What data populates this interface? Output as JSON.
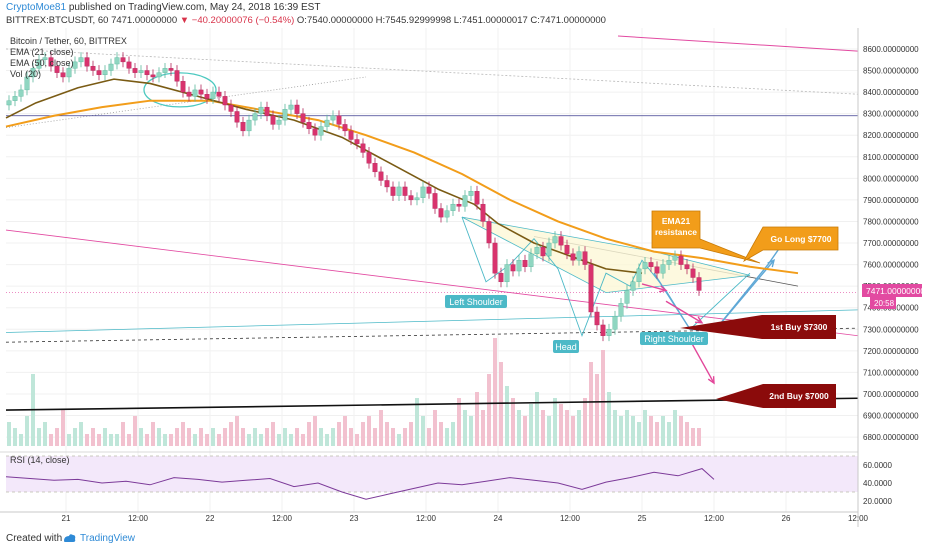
{
  "header": {
    "username": "CryptoMoe81",
    "published_text": "published on TradingView.com, May 24, 2018 16:39 EST",
    "symbol": "BITTREX:BTCUSDT, 60",
    "last_price": "7471.00000000",
    "change": "−40.20000076 (−0.54%)",
    "ohlc": "O:7540.00000000 H:7545.92999998 L:7451.00000017 C:7471.00000000"
  },
  "legend": {
    "title": "Bitcoin / Tether, 60, BITTREX",
    "ema21": "EMA (21, close)",
    "ema50": "EMA (50, close)",
    "vol": "Vol (20)"
  },
  "rsi": {
    "label": "RSI (14, close)",
    "ticks": [
      "60.0000",
      "40.0000",
      "20.0000"
    ]
  },
  "price_tag": {
    "value": "7471.00000000",
    "time": "20:58"
  },
  "footer": {
    "created": "Created with",
    "brand": "TradingView"
  },
  "colors": {
    "up": "#8fd6c1",
    "down": "#d8336d",
    "ema21": "#7a5b14",
    "ema50": "#f29d1a",
    "pink": "#e24aa1",
    "teal": "#4cb9c7",
    "navy": "#3b3b8e",
    "darkred": "#8b0b0b",
    "annot_orange": "#f29d1a",
    "arrow_blue": "#5fa8d6",
    "arrow_pink": "#e2479a"
  },
  "chart_data": {
    "type": "candlestick",
    "y_axis": {
      "min": 6740,
      "max": 8660,
      "ticks": [
        "8600.00000000",
        "8500.00000000",
        "8400.00000000",
        "8300.00000000",
        "8200.00000000",
        "8100.00000000",
        "8000.00000000",
        "7900.00000000",
        "7800.00000000",
        "7700.00000000",
        "7600.00000000",
        "7500.00000000",
        "7400.00000000",
        "7300.00000000",
        "7200.00000000",
        "7100.00000000",
        "7000.00000000",
        "6900.00000000",
        "6800.00000000"
      ]
    },
    "x_axis": {
      "min": 0,
      "max": 142,
      "ticks": [
        {
          "label": "21",
          "x": 10
        },
        {
          "label": "12:00",
          "x": 22
        },
        {
          "label": "22",
          "x": 34
        },
        {
          "label": "12:00",
          "x": 46
        },
        {
          "label": "23",
          "x": 58
        },
        {
          "label": "12:00",
          "x": 70
        },
        {
          "label": "24",
          "x": 82
        },
        {
          "label": "12:00",
          "x": 94
        },
        {
          "label": "25",
          "x": 106
        },
        {
          "label": "12:00",
          "x": 118
        },
        {
          "label": "26",
          "x": 130
        },
        {
          "label": "12:00",
          "x": 142
        }
      ]
    },
    "closes": [
      8360,
      8380,
      8410,
      8470,
      8510,
      8550,
      8560,
      8520,
      8490,
      8470,
      8510,
      8540,
      8560,
      8520,
      8500,
      8480,
      8500,
      8530,
      8560,
      8540,
      8510,
      8490,
      8500,
      8480,
      8470,
      8490,
      8510,
      8500,
      8450,
      8400,
      8380,
      8410,
      8390,
      8370,
      8400,
      8380,
      8340,
      8310,
      8260,
      8220,
      8270,
      8300,
      8330,
      8290,
      8250,
      8270,
      8320,
      8340,
      8300,
      8260,
      8230,
      8200,
      8240,
      8270,
      8290,
      8250,
      8220,
      8180,
      8160,
      8120,
      8070,
      8030,
      7990,
      7960,
      7920,
      7960,
      7920,
      7900,
      7910,
      7960,
      7930,
      7860,
      7820,
      7850,
      7880,
      7870,
      7920,
      7940,
      7880,
      7800,
      7700,
      7560,
      7520,
      7600,
      7570,
      7620,
      7590,
      7650,
      7680,
      7640,
      7700,
      7730,
      7690,
      7650,
      7620,
      7660,
      7600,
      7380,
      7320,
      7270,
      7300,
      7360,
      7420,
      7480,
      7520,
      7580,
      7610,
      7590,
      7560,
      7600,
      7620,
      7640,
      7600,
      7580,
      7540,
      7480
    ],
    "ema21_points": [
      [
        0,
        8280
      ],
      [
        5,
        8350
      ],
      [
        12,
        8420
      ],
      [
        18,
        8460
      ],
      [
        24,
        8440
      ],
      [
        32,
        8380
      ],
      [
        40,
        8320
      ],
      [
        48,
        8270
      ],
      [
        56,
        8190
      ],
      [
        64,
        8070
      ],
      [
        72,
        7950
      ],
      [
        78,
        7880
      ],
      [
        82,
        7790
      ],
      [
        88,
        7700
      ],
      [
        94,
        7640
      ],
      [
        100,
        7580
      ],
      [
        106,
        7560
      ]
    ],
    "ema50_points": [
      [
        0,
        8240
      ],
      [
        8,
        8290
      ],
      [
        16,
        8330
      ],
      [
        24,
        8360
      ],
      [
        34,
        8360
      ],
      [
        42,
        8320
      ],
      [
        52,
        8270
      ],
      [
        60,
        8200
      ],
      [
        68,
        8120
      ],
      [
        76,
        8020
      ],
      [
        84,
        7900
      ],
      [
        92,
        7800
      ],
      [
        100,
        7720
      ],
      [
        108,
        7660
      ],
      [
        116,
        7630
      ],
      [
        124,
        7590
      ],
      [
        132,
        7560
      ]
    ],
    "rsi_points": [
      [
        0,
        47
      ],
      [
        4,
        45
      ],
      [
        8,
        43
      ],
      [
        12,
        44
      ],
      [
        16,
        40
      ],
      [
        20,
        42
      ],
      [
        24,
        38
      ],
      [
        28,
        46
      ],
      [
        32,
        44
      ],
      [
        36,
        41
      ],
      [
        40,
        43
      ],
      [
        44,
        45
      ],
      [
        48,
        36
      ],
      [
        52,
        40
      ],
      [
        56,
        30
      ],
      [
        60,
        22
      ],
      [
        64,
        28
      ],
      [
        68,
        34
      ],
      [
        72,
        40
      ],
      [
        76,
        38
      ],
      [
        80,
        42
      ],
      [
        84,
        46
      ],
      [
        88,
        43
      ],
      [
        92,
        40
      ],
      [
        96,
        33
      ],
      [
        100,
        41
      ],
      [
        104,
        46
      ],
      [
        108,
        52
      ],
      [
        112,
        48
      ],
      [
        116,
        56
      ],
      [
        118,
        44
      ]
    ],
    "volume": [
      4,
      3,
      2,
      5,
      12,
      3,
      4,
      2,
      3,
      6,
      2,
      3,
      4,
      2,
      3,
      2,
      3,
      2,
      2,
      4,
      2,
      5,
      3,
      2,
      4,
      3,
      2,
      2,
      3,
      4,
      3,
      2,
      3,
      2,
      3,
      2,
      3,
      4,
      5,
      3,
      2,
      3,
      2,
      3,
      4,
      2,
      3,
      2,
      3,
      2,
      4,
      5,
      3,
      2,
      3,
      4,
      5,
      3,
      2,
      4,
      5,
      3,
      6,
      4,
      3,
      2,
      3,
      4,
      8,
      5,
      3,
      6,
      4,
      3,
      4,
      8,
      6,
      5,
      9,
      6,
      12,
      18,
      14,
      10,
      8,
      6,
      5,
      7,
      9,
      6,
      5,
      8,
      7,
      6,
      5,
      6,
      8,
      14,
      12,
      16,
      9,
      6,
      5,
      6,
      5,
      4,
      6,
      5,
      4,
      5,
      4,
      6,
      5,
      4,
      3,
      3
    ]
  },
  "annotations": {
    "left_shoulder": "Left Shoulder",
    "head": "Head",
    "right_shoulder": "Right Shoulder",
    "ema21_resistance_1": "EMA21",
    "ema21_resistance_2": "resistance",
    "go_long": "Go Long $7700",
    "first_buy": "1st Buy $7300",
    "second_buy": "2nd Buy $7000"
  }
}
